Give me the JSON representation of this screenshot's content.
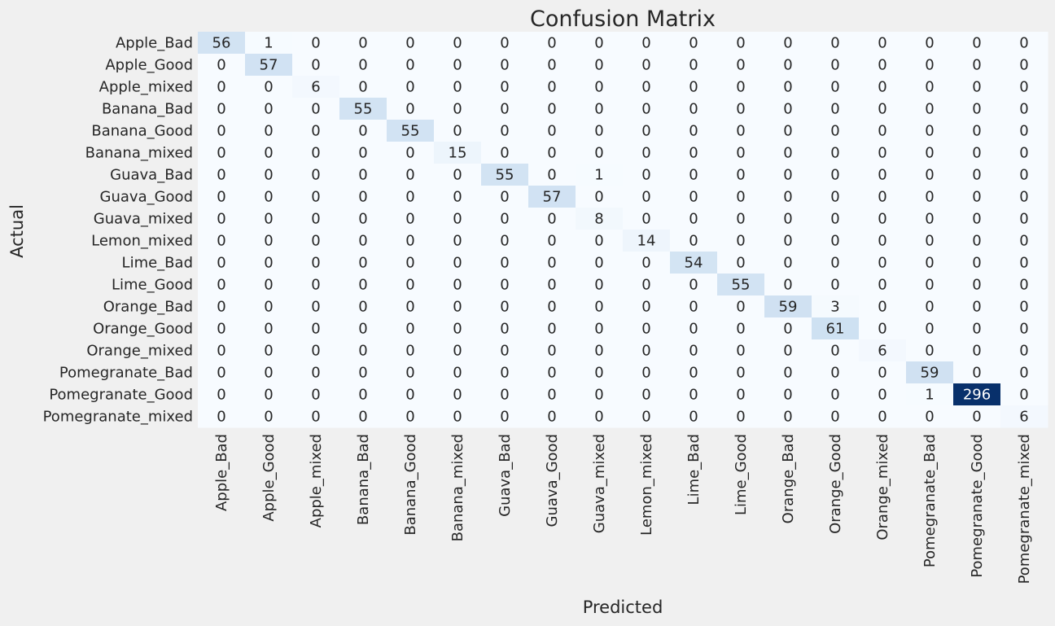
{
  "chart_data": {
    "type": "heatmap",
    "title": "Confusion Matrix",
    "xlabel": "Predicted",
    "ylabel": "Actual",
    "colormap": "Blues",
    "colorbar": false,
    "vmin": 0,
    "vmax": 296,
    "colors": {
      "background": "#f0f0f0",
      "low": "#f7fbff",
      "high": "#08306b",
      "text_dark": "#262626",
      "text_light": "#ffffff"
    },
    "labels": [
      "Apple_Bad",
      "Apple_Good",
      "Apple_mixed",
      "Banana_Bad",
      "Banana_Good",
      "Banana_mixed",
      "Guava_Bad",
      "Guava_Good",
      "Guava_mixed",
      "Lemon_mixed",
      "Lime_Bad",
      "Lime_Good",
      "Orange_Bad",
      "Orange_Good",
      "Orange_mixed",
      "Pomegranate_Bad",
      "Pomegranate_Good",
      "Pomegranate_mixed"
    ],
    "matrix": [
      [
        56,
        1,
        0,
        0,
        0,
        0,
        0,
        0,
        0,
        0,
        0,
        0,
        0,
        0,
        0,
        0,
        0,
        0
      ],
      [
        0,
        57,
        0,
        0,
        0,
        0,
        0,
        0,
        0,
        0,
        0,
        0,
        0,
        0,
        0,
        0,
        0,
        0
      ],
      [
        0,
        0,
        6,
        0,
        0,
        0,
        0,
        0,
        0,
        0,
        0,
        0,
        0,
        0,
        0,
        0,
        0,
        0
      ],
      [
        0,
        0,
        0,
        55,
        0,
        0,
        0,
        0,
        0,
        0,
        0,
        0,
        0,
        0,
        0,
        0,
        0,
        0
      ],
      [
        0,
        0,
        0,
        0,
        55,
        0,
        0,
        0,
        0,
        0,
        0,
        0,
        0,
        0,
        0,
        0,
        0,
        0
      ],
      [
        0,
        0,
        0,
        0,
        0,
        15,
        0,
        0,
        0,
        0,
        0,
        0,
        0,
        0,
        0,
        0,
        0,
        0
      ],
      [
        0,
        0,
        0,
        0,
        0,
        0,
        55,
        0,
        1,
        0,
        0,
        0,
        0,
        0,
        0,
        0,
        0,
        0
      ],
      [
        0,
        0,
        0,
        0,
        0,
        0,
        0,
        57,
        0,
        0,
        0,
        0,
        0,
        0,
        0,
        0,
        0,
        0
      ],
      [
        0,
        0,
        0,
        0,
        0,
        0,
        0,
        0,
        8,
        0,
        0,
        0,
        0,
        0,
        0,
        0,
        0,
        0
      ],
      [
        0,
        0,
        0,
        0,
        0,
        0,
        0,
        0,
        0,
        14,
        0,
        0,
        0,
        0,
        0,
        0,
        0,
        0
      ],
      [
        0,
        0,
        0,
        0,
        0,
        0,
        0,
        0,
        0,
        0,
        54,
        0,
        0,
        0,
        0,
        0,
        0,
        0
      ],
      [
        0,
        0,
        0,
        0,
        0,
        0,
        0,
        0,
        0,
        0,
        0,
        55,
        0,
        0,
        0,
        0,
        0,
        0
      ],
      [
        0,
        0,
        0,
        0,
        0,
        0,
        0,
        0,
        0,
        0,
        0,
        0,
        59,
        3,
        0,
        0,
        0,
        0
      ],
      [
        0,
        0,
        0,
        0,
        0,
        0,
        0,
        0,
        0,
        0,
        0,
        0,
        0,
        61,
        0,
        0,
        0,
        0
      ],
      [
        0,
        0,
        0,
        0,
        0,
        0,
        0,
        0,
        0,
        0,
        0,
        0,
        0,
        0,
        6,
        0,
        0,
        0
      ],
      [
        0,
        0,
        0,
        0,
        0,
        0,
        0,
        0,
        0,
        0,
        0,
        0,
        0,
        0,
        0,
        59,
        0,
        0
      ],
      [
        0,
        0,
        0,
        0,
        0,
        0,
        0,
        0,
        0,
        0,
        0,
        0,
        0,
        0,
        0,
        1,
        296,
        0
      ],
      [
        0,
        0,
        0,
        0,
        0,
        0,
        0,
        0,
        0,
        0,
        0,
        0,
        0,
        0,
        0,
        0,
        0,
        6
      ]
    ]
  }
}
